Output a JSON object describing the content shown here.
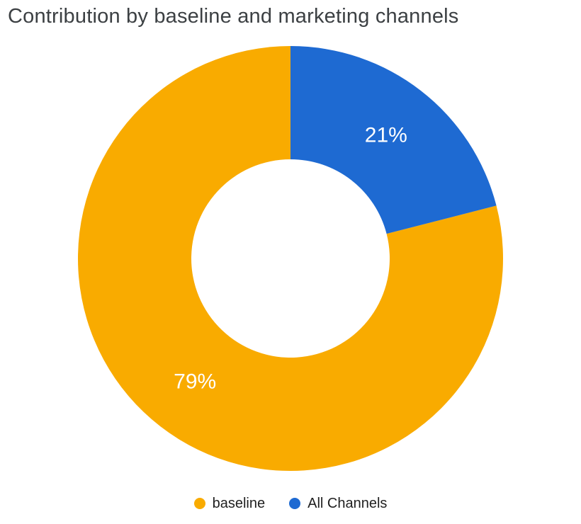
{
  "chart_data": {
    "type": "pie",
    "donut": true,
    "title": "Contribution by baseline and marketing channels",
    "title_color": "#3c4043",
    "legend_position": "bottom",
    "rotation_deg": 75.6,
    "label_color": "#ffffff",
    "slices": [
      {
        "name": "baseline",
        "value": 79,
        "label": "79%",
        "color": "#F9AB00"
      },
      {
        "name": "All Channels",
        "value": 21,
        "label": "21%",
        "color": "#1E6AD2"
      }
    ]
  }
}
